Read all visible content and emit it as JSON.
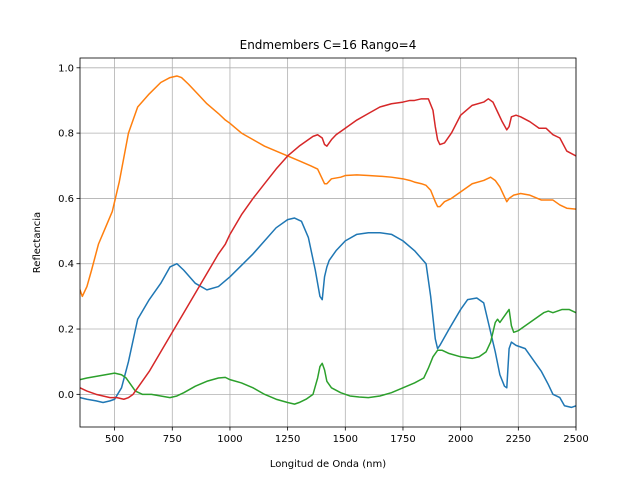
{
  "chart_data": {
    "type": "line",
    "title": "Endmembers C=16 Rango=4",
    "xlabel": "Longitud de Onda (nm)",
    "ylabel": "Reflectancia",
    "xlim": [
      350,
      2500
    ],
    "ylim": [
      -0.1,
      1.03
    ],
    "xticks": [
      500,
      750,
      1000,
      1250,
      1500,
      1750,
      2000,
      2250,
      2500
    ],
    "yticks": [
      0.0,
      0.2,
      0.4,
      0.6,
      0.8,
      1.0
    ],
    "xtick_labels": [
      "500",
      "750",
      "1000",
      "1250",
      "1500",
      "1750",
      "2000",
      "2250",
      "2500"
    ],
    "ytick_labels": [
      "0.0",
      "0.2",
      "0.4",
      "0.6",
      "0.8",
      "1.0"
    ],
    "grid": true,
    "legend": "none",
    "series": [
      {
        "color": "#1f77b4",
        "x": [
          350,
          380,
          420,
          450,
          480,
          500,
          530,
          560,
          600,
          650,
          700,
          740,
          770,
          800,
          850,
          900,
          950,
          1000,
          1100,
          1200,
          1250,
          1280,
          1310,
          1340,
          1370,
          1390,
          1400,
          1410,
          1420,
          1430,
          1460,
          1500,
          1550,
          1600,
          1650,
          1700,
          1750,
          1800,
          1850,
          1870,
          1890,
          1900,
          1910,
          1950,
          2000,
          2030,
          2070,
          2100,
          2120,
          2150,
          2170,
          2190,
          2200,
          2210,
          2220,
          2240,
          2280,
          2320,
          2350,
          2380,
          2400,
          2430,
          2450,
          2480,
          2500
        ],
        "y": [
          -0.01,
          -0.015,
          -0.02,
          -0.025,
          -0.02,
          -0.015,
          0.02,
          0.1,
          0.23,
          0.29,
          0.34,
          0.39,
          0.4,
          0.38,
          0.34,
          0.32,
          0.33,
          0.36,
          0.43,
          0.51,
          0.535,
          0.54,
          0.53,
          0.48,
          0.38,
          0.3,
          0.29,
          0.36,
          0.39,
          0.41,
          0.44,
          0.47,
          0.49,
          0.495,
          0.495,
          0.49,
          0.47,
          0.44,
          0.4,
          0.3,
          0.17,
          0.14,
          0.15,
          0.2,
          0.26,
          0.29,
          0.295,
          0.28,
          0.22,
          0.13,
          0.06,
          0.025,
          0.02,
          0.14,
          0.16,
          0.15,
          0.14,
          0.1,
          0.07,
          0.03,
          0.0,
          -0.01,
          -0.035,
          -0.04,
          -0.035
        ]
      },
      {
        "color": "#ff7f0e",
        "x": [
          350,
          360,
          380,
          400,
          430,
          460,
          490,
          520,
          560,
          600,
          650,
          700,
          740,
          770,
          790,
          820,
          860,
          900,
          950,
          980,
          1000,
          1050,
          1100,
          1150,
          1200,
          1250,
          1300,
          1350,
          1380,
          1400,
          1410,
          1420,
          1440,
          1480,
          1500,
          1550,
          1600,
          1650,
          1700,
          1750,
          1780,
          1800,
          1830,
          1850,
          1870,
          1890,
          1900,
          1910,
          1930,
          1960,
          2000,
          2050,
          2100,
          2130,
          2150,
          2170,
          2190,
          2200,
          2210,
          2230,
          2260,
          2300,
          2350,
          2400,
          2430,
          2460,
          2500
        ],
        "y": [
          0.32,
          0.3,
          0.33,
          0.38,
          0.46,
          0.51,
          0.56,
          0.65,
          0.8,
          0.88,
          0.92,
          0.955,
          0.97,
          0.975,
          0.97,
          0.95,
          0.92,
          0.89,
          0.86,
          0.84,
          0.83,
          0.8,
          0.78,
          0.76,
          0.745,
          0.73,
          0.715,
          0.7,
          0.69,
          0.66,
          0.645,
          0.645,
          0.66,
          0.665,
          0.67,
          0.672,
          0.67,
          0.668,
          0.665,
          0.66,
          0.655,
          0.65,
          0.645,
          0.64,
          0.625,
          0.59,
          0.575,
          0.575,
          0.59,
          0.6,
          0.62,
          0.645,
          0.655,
          0.665,
          0.655,
          0.635,
          0.605,
          0.59,
          0.6,
          0.61,
          0.615,
          0.61,
          0.595,
          0.595,
          0.58,
          0.57,
          0.567
        ]
      },
      {
        "color": "#2ca02c",
        "x": [
          350,
          380,
          420,
          460,
          500,
          530,
          550,
          570,
          590,
          620,
          660,
          700,
          740,
          770,
          800,
          850,
          900,
          950,
          980,
          1000,
          1050,
          1100,
          1150,
          1200,
          1250,
          1280,
          1300,
          1330,
          1360,
          1380,
          1390,
          1400,
          1410,
          1420,
          1440,
          1480,
          1520,
          1560,
          1600,
          1650,
          1700,
          1750,
          1800,
          1840,
          1860,
          1880,
          1900,
          1920,
          1950,
          2000,
          2050,
          2080,
          2110,
          2130,
          2150,
          2160,
          2170,
          2180,
          2200,
          2210,
          2220,
          2230,
          2250,
          2280,
          2320,
          2360,
          2380,
          2400,
          2420,
          2440,
          2470,
          2500
        ],
        "y": [
          0.045,
          0.05,
          0.055,
          0.06,
          0.065,
          0.06,
          0.05,
          0.03,
          0.01,
          0.0,
          0.0,
          -0.005,
          -0.01,
          -0.005,
          0.005,
          0.025,
          0.04,
          0.05,
          0.052,
          0.045,
          0.035,
          0.02,
          0.0,
          -0.015,
          -0.025,
          -0.03,
          -0.025,
          -0.015,
          0.0,
          0.05,
          0.085,
          0.095,
          0.075,
          0.04,
          0.02,
          0.005,
          -0.005,
          -0.008,
          -0.01,
          -0.005,
          0.005,
          0.02,
          0.035,
          0.05,
          0.08,
          0.115,
          0.135,
          0.135,
          0.125,
          0.115,
          0.11,
          0.115,
          0.13,
          0.16,
          0.22,
          0.23,
          0.22,
          0.23,
          0.25,
          0.26,
          0.21,
          0.19,
          0.195,
          0.21,
          0.23,
          0.25,
          0.255,
          0.25,
          0.255,
          0.26,
          0.26,
          0.25
        ]
      },
      {
        "color": "#d62728",
        "x": [
          350,
          380,
          420,
          450,
          480,
          510,
          540,
          560,
          580,
          600,
          650,
          700,
          750,
          800,
          850,
          900,
          950,
          980,
          1000,
          1050,
          1100,
          1150,
          1200,
          1250,
          1300,
          1330,
          1360,
          1380,
          1400,
          1410,
          1420,
          1440,
          1460,
          1500,
          1550,
          1600,
          1650,
          1700,
          1750,
          1780,
          1800,
          1830,
          1840,
          1860,
          1880,
          1890,
          1900,
          1910,
          1930,
          1960,
          2000,
          2050,
          2100,
          2120,
          2140,
          2160,
          2180,
          2200,
          2210,
          2220,
          2240,
          2260,
          2300,
          2340,
          2370,
          2400,
          2430,
          2460,
          2500
        ],
        "y": [
          0.02,
          0.01,
          0.0,
          -0.005,
          -0.01,
          -0.01,
          -0.015,
          -0.01,
          0.0,
          0.02,
          0.07,
          0.13,
          0.19,
          0.25,
          0.31,
          0.37,
          0.43,
          0.46,
          0.49,
          0.55,
          0.6,
          0.645,
          0.69,
          0.73,
          0.76,
          0.775,
          0.79,
          0.795,
          0.785,
          0.765,
          0.76,
          0.78,
          0.795,
          0.815,
          0.84,
          0.86,
          0.88,
          0.89,
          0.895,
          0.9,
          0.9,
          0.905,
          0.905,
          0.905,
          0.87,
          0.82,
          0.78,
          0.765,
          0.77,
          0.8,
          0.855,
          0.885,
          0.895,
          0.905,
          0.895,
          0.865,
          0.835,
          0.81,
          0.82,
          0.85,
          0.855,
          0.85,
          0.835,
          0.815,
          0.815,
          0.795,
          0.785,
          0.745,
          0.73
        ]
      }
    ]
  }
}
